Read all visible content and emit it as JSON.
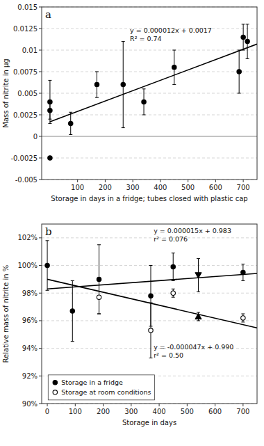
{
  "chart_data": [
    {
      "type": "scatter",
      "title": "a",
      "xlabel": "Storage in days in a fridge; tubes closed with plastic cap",
      "ylabel": "Mass of nitrite in µg",
      "xlim": [
        -30,
        750
      ],
      "ylim": [
        -0.005,
        0.015
      ],
      "xticks": [
        100,
        200,
        300,
        400,
        500,
        600,
        700
      ],
      "yticks": [
        -0.005,
        -0.0025,
        0,
        0.0025,
        0.005,
        0.0075,
        0.01,
        0.0125,
        0.015
      ],
      "grid": true,
      "series": [
        {
          "type": "line",
          "color": "#000000",
          "x": [
            0,
            750
          ],
          "values": [
            0.0017,
            0.0107
          ]
        },
        {
          "type": "scatter",
          "marker": "circle",
          "color": "#000000",
          "x": [
            0,
            0,
            0,
            75,
            170,
            265,
            340,
            450,
            685,
            700,
            715
          ],
          "values": [
            0.004,
            0.003,
            -0.0025,
            0.0015,
            0.006,
            0.006,
            0.004,
            0.008,
            0.0075,
            0.0115,
            0.011
          ],
          "error_lo": [
            0.0025,
            0.001,
            0.0,
            0.0013,
            0.0015,
            0.005,
            0.0015,
            0.002,
            0.0025,
            0.0015,
            0.002
          ],
          "error_hi": [
            0.0025,
            0.001,
            0.0,
            0.0013,
            0.0015,
            0.005,
            0.0015,
            0.002,
            0.0025,
            0.0015,
            0.002
          ]
        }
      ],
      "annotations": [
        [
          "y = 0.000012x + 0.0017",
          "R² = 0.74"
        ]
      ]
    },
    {
      "type": "scatter",
      "title": "b",
      "xlabel": "Storage in days",
      "ylabel": "Relative mass of nitrite in %",
      "xlim": [
        -20,
        750
      ],
      "ylim": [
        0.9,
        1.03
      ],
      "xticks": [
        0,
        100,
        200,
        300,
        400,
        500,
        600,
        700
      ],
      "yticks": [
        {
          "value": 0.9,
          "label": "90%"
        },
        {
          "value": 0.92,
          "label": "92%"
        },
        {
          "value": 0.94,
          "label": "94%"
        },
        {
          "value": 0.96,
          "label": "96%"
        },
        {
          "value": 0.98,
          "label": "98%"
        },
        {
          "value": 1.0,
          "label": "100%"
        },
        {
          "value": 1.02,
          "label": "102%"
        }
      ],
      "grid": true,
      "legend": "lower left",
      "series": [
        {
          "type": "line",
          "color": "#000000",
          "x": [
            0,
            750
          ],
          "values": [
            0.983,
            0.99425
          ]
        },
        {
          "type": "line",
          "color": "#000000",
          "x": [
            0,
            750
          ],
          "values": [
            0.99,
            0.95475
          ]
        },
        {
          "type": "scatter",
          "name": "Storage in a fridge",
          "marker": "circle",
          "color": "#000000",
          "x": [
            0,
            90,
            185,
            370,
            450,
            700
          ],
          "values": [
            1.0,
            0.967,
            0.99,
            0.978,
            0.999,
            0.995
          ],
          "error_lo": [
            0.018,
            0.022,
            0.025,
            0.022,
            0.01,
            0.006
          ],
          "error_hi": [
            0.018,
            0.022,
            0.025,
            0.022,
            0.01,
            0.006
          ]
        },
        {
          "type": "scatter",
          "name": "Storage at room conditions",
          "marker": "circle-open",
          "color": "#000000",
          "x": [
            185,
            370,
            450,
            700
          ],
          "values": [
            0.977,
            0.953,
            0.98,
            0.962
          ],
          "error_lo": [
            0.012,
            0.02,
            0.003,
            0.003
          ],
          "error_hi": [
            0.012,
            0.02,
            0.003,
            0.003
          ]
        },
        {
          "type": "scatter",
          "marker": "triangle-down",
          "color": "#000000",
          "x": [
            540
          ],
          "values": [
            0.993
          ],
          "error_lo": [
            0.012
          ],
          "error_hi": [
            0.012
          ]
        },
        {
          "type": "scatter",
          "marker": "triangle-up",
          "color": "#000000",
          "x": [
            540
          ],
          "values": [
            0.963
          ],
          "error_lo": [
            0.003
          ],
          "error_hi": [
            0.003
          ]
        }
      ],
      "annotations": [
        [
          "y = 0.000015x + 0.983",
          "r² = 0.076"
        ],
        [
          "y = -0.000047x + 0.990",
          "r² = 0.50"
        ]
      ]
    }
  ]
}
